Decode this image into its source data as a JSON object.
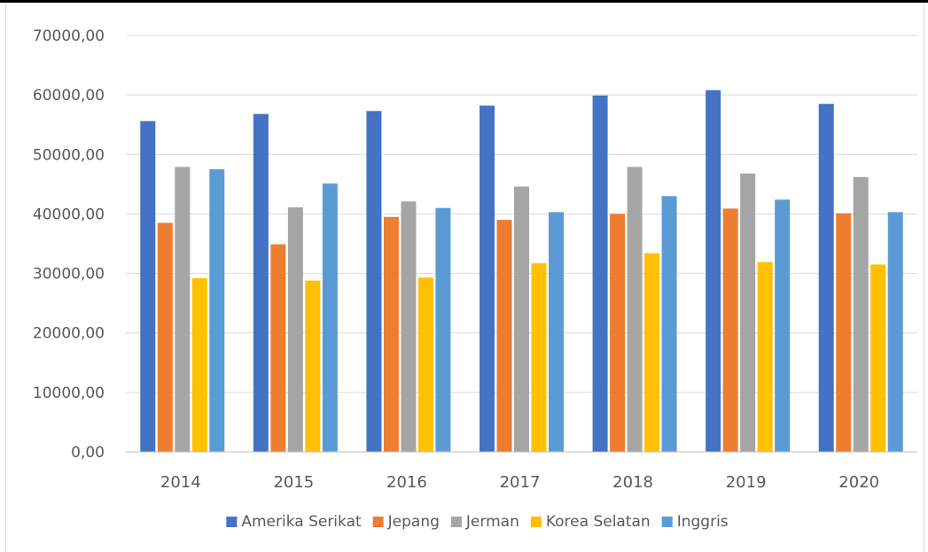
{
  "chart_data": {
    "type": "bar",
    "title": "",
    "xlabel": "",
    "ylabel": "",
    "categories": [
      "2014",
      "2015",
      "2016",
      "2017",
      "2018",
      "2019",
      "2020"
    ],
    "series": [
      {
        "name": "Amerika Serikat",
        "color": "#4472C4",
        "values": [
          55600,
          56800,
          57300,
          58200,
          59900,
          60800,
          58500
        ]
      },
      {
        "name": "Jepang",
        "color": "#ED7D31",
        "values": [
          38500,
          34900,
          39500,
          39000,
          40000,
          40900,
          40100
        ]
      },
      {
        "name": "Jerman",
        "color": "#A5A5A5",
        "values": [
          47900,
          41100,
          42100,
          44600,
          47900,
          46800,
          46200
        ]
      },
      {
        "name": "Korea Selatan",
        "color": "#FFC000",
        "values": [
          29200,
          28800,
          29300,
          31700,
          33400,
          31900,
          31500
        ]
      },
      {
        "name": "Inggris",
        "color": "#5B9BD5",
        "values": [
          47500,
          45100,
          41000,
          40300,
          43000,
          42400,
          40300
        ]
      }
    ],
    "ylim": [
      0,
      70000
    ],
    "yticks": [
      "0,00",
      "10000,00",
      "20000,00",
      "30000,00",
      "40000,00",
      "50000,00",
      "60000,00",
      "70000,00"
    ],
    "grid": true,
    "legend_position": "bottom"
  }
}
